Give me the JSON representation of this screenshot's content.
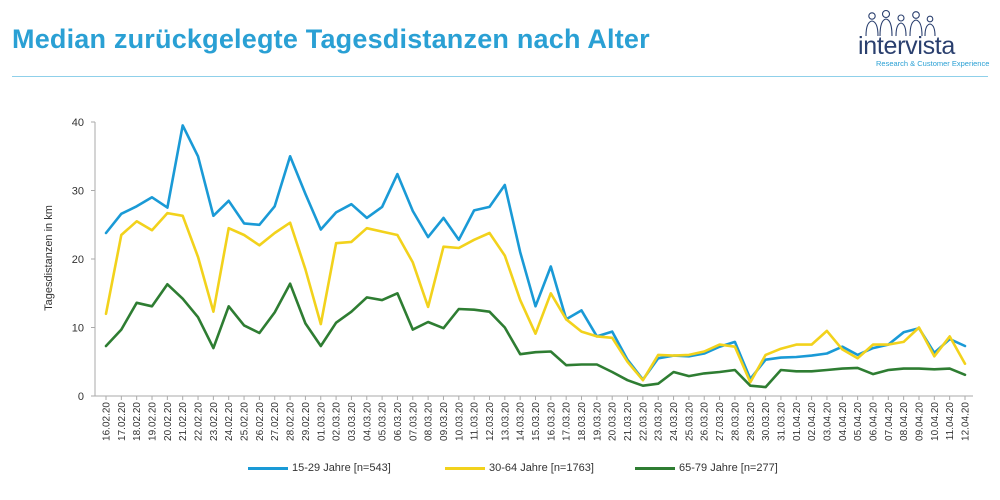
{
  "header": {
    "title": "Median zurückgelegte Tagesdistanzen nach Alter",
    "logo_text": "intervista",
    "logo_subtitle": "Research & Customer Experience"
  },
  "colors": {
    "title": "#2aa0d4",
    "series_15_29": "#1a9ad6",
    "series_30_64": "#f2d21c",
    "series_65_79": "#2e7d32",
    "axis": "#999999"
  },
  "chart_data": {
    "type": "line",
    "title": "Median zurückgelegte Tagesdistanzen nach Alter",
    "xlabel": "",
    "ylabel": "Tagesdistanzen in km",
    "ylim": [
      0,
      40
    ],
    "yticks": [
      0,
      10,
      20,
      30,
      40
    ],
    "grid": false,
    "legend_position": "bottom",
    "x": [
      "16.02.20",
      "17.02.20",
      "18.02.20",
      "19.02.20",
      "20.02.20",
      "21.02.20",
      "22.02.20",
      "23.02.20",
      "24.02.20",
      "25.02.20",
      "26.02.20",
      "27.02.20",
      "28.02.20",
      "29.02.20",
      "01.03.20",
      "02.03.20",
      "03.03.20",
      "04.03.20",
      "05.03.20",
      "06.03.20",
      "07.03.20",
      "08.03.20",
      "09.03.20",
      "10.03.20",
      "11.03.20",
      "12.03.20",
      "13.03.20",
      "14.03.20",
      "15.03.20",
      "16.03.20",
      "17.03.20",
      "18.03.20",
      "19.03.20",
      "20.03.20",
      "21.03.20",
      "22.03.20",
      "23.03.20",
      "24.03.20",
      "25.03.20",
      "26.03.20",
      "27.03.20",
      "28.03.20",
      "29.03.20",
      "30.03.20",
      "31.03.20",
      "01.04.20",
      "02.04.20",
      "03.04.20",
      "04.04.20",
      "05.04.20",
      "06.04.20",
      "07.04.20",
      "08.04.20",
      "09.04.20",
      "10.04.20",
      "11.04.20",
      "12.04.20"
    ],
    "x_tick_labels": [
      "16.02.20",
      "17.02.20",
      "18.02.20",
      "19.02.20",
      "20.02.20",
      "21.02.20",
      "22.02.20",
      "23.02.20",
      "24.02.20",
      "25.02.20",
      "26.02.20",
      "27.02.20",
      "28.02.20",
      "29.02.20",
      "01.03.20",
      "02.03.20",
      "03.03.20",
      "04.03.20",
      "05.03.20",
      "06.03.20",
      "07.03.20",
      "08.03.20",
      "09.03.20",
      "10.03.20",
      "11.03.20",
      "12.03.20",
      "13.03.20",
      "14.03.20",
      "15.03.20",
      "16.03.20",
      "17.03.20",
      "18.03.20",
      "19.03.20",
      "20.03.20",
      "21.03.20",
      "22.03.20",
      "23.03.20",
      "24.03.20",
      "25.03.20",
      "26.03.20",
      "27.03.20",
      "28.03.20",
      "29.03.20",
      "30.03.20",
      "31.03.20",
      "01.04.20",
      "02.04.20",
      "03.04.20",
      "04.04.20",
      "05.04.20",
      "06.04.20",
      "07.04.20",
      "08.04.20",
      "09.04.20",
      "10.04.20",
      "11.04.20",
      "12.04.20"
    ],
    "series": [
      {
        "name": "15-29 Jahre [n=543]",
        "color": "#1a9ad6",
        "values": [
          23.8,
          26.6,
          27.7,
          29.0,
          27.5,
          39.5,
          35.0,
          26.3,
          28.5,
          25.2,
          25.0,
          27.7,
          35.0,
          29.5,
          24.3,
          26.8,
          28.0,
          26.0,
          27.6,
          32.4,
          27.0,
          23.2,
          26.0,
          22.8,
          27.1,
          27.6,
          30.8,
          21.0,
          13.1,
          18.9,
          11.2,
          12.5,
          8.7,
          9.4,
          5.3,
          2.4,
          5.5,
          5.9,
          5.8,
          6.2,
          7.2,
          7.9,
          2.5,
          5.3,
          5.6,
          5.7,
          5.9,
          6.2,
          7.2,
          6.0,
          7.0,
          7.5,
          9.3,
          9.9,
          6.3,
          8.3,
          7.3
        ]
      },
      {
        "name": "30-64 Jahre [n=1763]",
        "color": "#f2d21c",
        "values": [
          12.0,
          23.5,
          25.5,
          24.2,
          26.7,
          26.3,
          20.3,
          12.3,
          24.5,
          23.5,
          22.0,
          23.8,
          25.3,
          18.5,
          10.5,
          22.3,
          22.5,
          24.5,
          24.0,
          23.5,
          19.5,
          13.0,
          21.8,
          21.6,
          22.8,
          23.8,
          20.5,
          14.0,
          9.1,
          15.0,
          11.2,
          9.4,
          8.7,
          8.5,
          5.0,
          2.3,
          6.0,
          5.9,
          6.0,
          6.5,
          7.5,
          7.2,
          2.0,
          6.0,
          6.9,
          7.5,
          7.5,
          9.5,
          6.8,
          5.5,
          7.5,
          7.5,
          7.9,
          10.0,
          5.8,
          8.7,
          4.7
        ]
      },
      {
        "name": "65-79 Jahre [n=277]",
        "color": "#2e7d32",
        "values": [
          7.3,
          9.7,
          13.6,
          13.1,
          16.3,
          14.2,
          11.5,
          7.0,
          13.1,
          10.3,
          9.2,
          12.2,
          16.4,
          10.6,
          7.3,
          10.7,
          12.3,
          14.4,
          14.0,
          15.0,
          9.7,
          10.8,
          9.9,
          12.7,
          12.6,
          12.3,
          10.0,
          6.1,
          6.4,
          6.5,
          4.5,
          4.6,
          4.6,
          3.5,
          2.3,
          1.5,
          1.8,
          3.5,
          2.9,
          3.3,
          3.5,
          3.8,
          1.5,
          1.3,
          3.8,
          3.6,
          3.6,
          3.8,
          4.0,
          4.1,
          3.2,
          3.8,
          4.0,
          4.0,
          3.9,
          4.0,
          3.1
        ]
      }
    ]
  }
}
